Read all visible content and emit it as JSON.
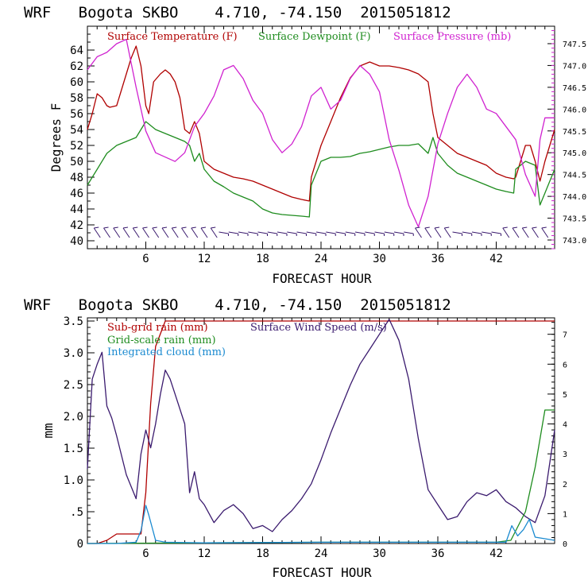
{
  "chart_data": [
    {
      "type": "line",
      "title": "WRF   Bogota SKBO    4.710, -74.150  2015051812",
      "xlabel": "FORECAST HOUR",
      "ylabel": "Degrees F",
      "y2label": "",
      "xlim": [
        0,
        48
      ],
      "ylim": [
        39,
        67
      ],
      "y2lim": [
        742.8,
        747.9
      ],
      "x_ticks": [
        6,
        12,
        18,
        24,
        30,
        36,
        42
      ],
      "y_ticks": [
        40,
        42,
        44,
        46,
        48,
        50,
        52,
        54,
        56,
        58,
        60,
        62,
        64
      ],
      "y2_ticks": [
        743.0,
        743.5,
        744.0,
        744.5,
        745.0,
        745.5,
        746.0,
        746.5,
        747.0,
        747.5
      ],
      "y2_tick_labels": [
        "743.0",
        "743.5",
        "744.0",
        "744.5",
        "745.0",
        "745.5",
        "746.0",
        "746.5",
        "747.0",
        "747.5"
      ],
      "wind_barbs_row": 41,
      "series": [
        {
          "name": "Surface Temperature (F)",
          "color": "#b00000",
          "axis": "left",
          "x": [
            0,
            0.5,
            1,
            1.5,
            2,
            2.3,
            3,
            3.5,
            4,
            4.5,
            5,
            5.5,
            6,
            6.3,
            6.8,
            7.5,
            8,
            8.5,
            9,
            9.5,
            10,
            10.5,
            11,
            11.5,
            12,
            13,
            14,
            15,
            16,
            17,
            18,
            19,
            20,
            21,
            22,
            22.8,
            23,
            24,
            25,
            26,
            27,
            28,
            29,
            30,
            31,
            32,
            33,
            34,
            35,
            35.5,
            36,
            37,
            38,
            39,
            40,
            41,
            42,
            43,
            43.8,
            44,
            45,
            45.5,
            46,
            46.5,
            47,
            48
          ],
          "values": [
            54,
            56,
            58.5,
            58,
            57,
            56.8,
            57,
            59,
            61,
            63,
            64.5,
            62,
            57,
            56,
            60,
            61,
            61.5,
            61,
            60,
            58,
            54,
            53.5,
            55,
            53.5,
            50,
            49,
            48.5,
            48,
            47.8,
            47.5,
            47,
            46.5,
            46,
            45.5,
            45.2,
            45,
            48,
            52,
            55,
            58,
            60.5,
            62,
            62.5,
            62,
            62,
            61.8,
            61.5,
            61,
            60,
            56,
            53,
            52,
            51,
            50.5,
            50,
            49.5,
            48.5,
            48,
            47.8,
            48,
            52,
            52,
            50,
            47.5,
            50,
            54
          ]
        },
        {
          "name": "Surface Dewpoint (F)",
          "color": "#1e8c1e",
          "axis": "left",
          "x": [
            0,
            1,
            2,
            3,
            4,
            5,
            5.5,
            6,
            7,
            8,
            9,
            10,
            10.5,
            11,
            11.5,
            12,
            13,
            14,
            15,
            16,
            17,
            18,
            19,
            20,
            21,
            22,
            22.8,
            23,
            24,
            25,
            26,
            27,
            28,
            29,
            30,
            31,
            32,
            33,
            34,
            35,
            35.5,
            36,
            37,
            38,
            39,
            40,
            41,
            42,
            43,
            43.8,
            44,
            45,
            46,
            46.5,
            47,
            48
          ],
          "values": [
            47,
            49,
            51,
            52,
            52.5,
            53,
            54,
            55,
            54,
            53.5,
            53,
            52.5,
            52,
            50,
            51,
            49,
            47.5,
            46.8,
            46,
            45.5,
            45,
            44,
            43.5,
            43.3,
            43.2,
            43.1,
            43,
            47,
            50,
            50.5,
            50.5,
            50.6,
            51,
            51.2,
            51.5,
            51.8,
            52,
            52,
            52.2,
            51,
            53,
            51,
            49.5,
            48.5,
            48,
            47.5,
            47,
            46.5,
            46.2,
            46,
            49,
            50,
            49.5,
            44.5,
            46,
            49
          ]
        },
        {
          "name": "Surface Pressure (mb)",
          "color": "#d022d0",
          "axis": "right",
          "x": [
            0,
            1,
            2,
            3,
            4,
            5,
            6,
            7,
            8,
            9,
            10,
            11,
            12,
            13,
            14,
            15,
            16,
            17,
            18,
            19,
            20,
            21,
            22,
            23,
            24,
            25,
            26,
            27,
            28,
            29,
            30,
            31,
            32,
            33,
            34,
            35,
            36,
            37,
            38,
            39,
            40,
            41,
            42,
            43,
            44,
            45,
            46,
            46.5,
            47,
            48
          ],
          "values": [
            746.9,
            747.2,
            747.3,
            747.5,
            747.6,
            746.5,
            745.5,
            745.0,
            744.9,
            744.8,
            745.0,
            745.6,
            745.9,
            746.3,
            746.9,
            747.0,
            746.7,
            746.2,
            745.9,
            745.3,
            745.0,
            745.2,
            745.6,
            746.3,
            746.5,
            746.0,
            746.2,
            746.7,
            747.0,
            746.8,
            746.4,
            745.3,
            744.6,
            743.8,
            743.3,
            744.0,
            745.2,
            745.9,
            746.5,
            746.8,
            746.5,
            746.0,
            745.9,
            745.6,
            745.3,
            744.5,
            744.0,
            745.3,
            745.8,
            745.8
          ]
        }
      ]
    },
    {
      "type": "line",
      "title": "WRF   Bogota SKBO    4.710, -74.150  2015051812",
      "xlabel": "FORECAST HOUR",
      "ylabel": "mm",
      "xlim": [
        0,
        48
      ],
      "ylim": [
        0,
        3.55
      ],
      "y2lim": [
        0,
        7.55
      ],
      "x_ticks": [
        6,
        12,
        18,
        24,
        30,
        36,
        42
      ],
      "y_ticks": [
        0,
        0.5,
        1.0,
        1.5,
        2.0,
        2.5,
        3.0,
        3.5
      ],
      "y_tick_labels": [
        "0",
        ".5",
        "1.0",
        "1.5",
        "2.0",
        "2.5",
        "3.0",
        "3.5"
      ],
      "y2_ticks": [
        0,
        1,
        2,
        3,
        4,
        5,
        6,
        7
      ],
      "y2_tick_labels": [
        "0",
        "1",
        "2",
        "3",
        "4",
        "5",
        "6",
        "7"
      ],
      "series": [
        {
          "name": "Sub-grid rain (mm)",
          "color": "#b00000",
          "axis": "left",
          "x": [
            0,
            1,
            2,
            3,
            5.5,
            6,
            6.5,
            7,
            8,
            48
          ],
          "values": [
            0,
            0,
            0.05,
            0.15,
            0.15,
            0.8,
            2.2,
            3.1,
            3.5,
            3.5
          ]
        },
        {
          "name": "Surface Wind Speed (m/s)",
          "color": "#3a1a6e",
          "axis": "right",
          "x": [
            0,
            0.5,
            1,
            1.5,
            2,
            2.5,
            3,
            4,
            5,
            5.5,
            6,
            6.5,
            7,
            7.5,
            8,
            8.5,
            9,
            10,
            10.5,
            11,
            11.5,
            12,
            13,
            14,
            15,
            16,
            17,
            18,
            19,
            20,
            21,
            22,
            23,
            24,
            25,
            26,
            27,
            28,
            29,
            30,
            31,
            32,
            33,
            34,
            35,
            36,
            37,
            38,
            39,
            40,
            41,
            42,
            43,
            44,
            45,
            46,
            47,
            48
          ],
          "values": [
            2.5,
            5.5,
            6.0,
            6.4,
            4.6,
            4.2,
            3.6,
            2.3,
            1.5,
            3.0,
            3.8,
            3.2,
            4.0,
            5.0,
            5.8,
            5.5,
            5.0,
            4.0,
            1.7,
            2.4,
            1.5,
            1.3,
            0.7,
            1.1,
            1.3,
            1.0,
            0.5,
            0.6,
            0.4,
            0.8,
            1.1,
            1.5,
            2.0,
            2.8,
            3.7,
            4.5,
            5.3,
            6.0,
            6.5,
            7.0,
            7.5,
            6.8,
            5.5,
            3.5,
            1.8,
            1.3,
            0.8,
            0.9,
            1.4,
            1.7,
            1.6,
            1.8,
            1.4,
            1.2,
            0.9,
            0.7,
            1.6,
            3.8
          ]
        },
        {
          "name": "Grid-scale rain (mm)",
          "color": "#1e8c1e",
          "axis": "left",
          "x": [
            0,
            12,
            24,
            30,
            36,
            42,
            43.5,
            44,
            45,
            46,
            47,
            48
          ],
          "values": [
            0,
            0.01,
            0.02,
            0.02,
            0.02,
            0.02,
            0.05,
            0.2,
            0.5,
            1.2,
            2.1,
            2.1
          ]
        },
        {
          "name": "Integrated cloud (mm)",
          "color": "#1a8ad0",
          "axis": "left",
          "x": [
            0,
            3,
            4,
            5,
            5.5,
            6,
            6.3,
            7,
            8,
            12,
            24,
            36,
            43,
            43.6,
            44.2,
            44.8,
            45.4,
            46,
            48
          ],
          "values": [
            0,
            0,
            0.01,
            0.02,
            0.2,
            0.6,
            0.45,
            0.05,
            0.02,
            0.01,
            0.02,
            0.02,
            0.02,
            0.28,
            0.12,
            0.22,
            0.38,
            0.1,
            0.05
          ]
        }
      ]
    }
  ]
}
